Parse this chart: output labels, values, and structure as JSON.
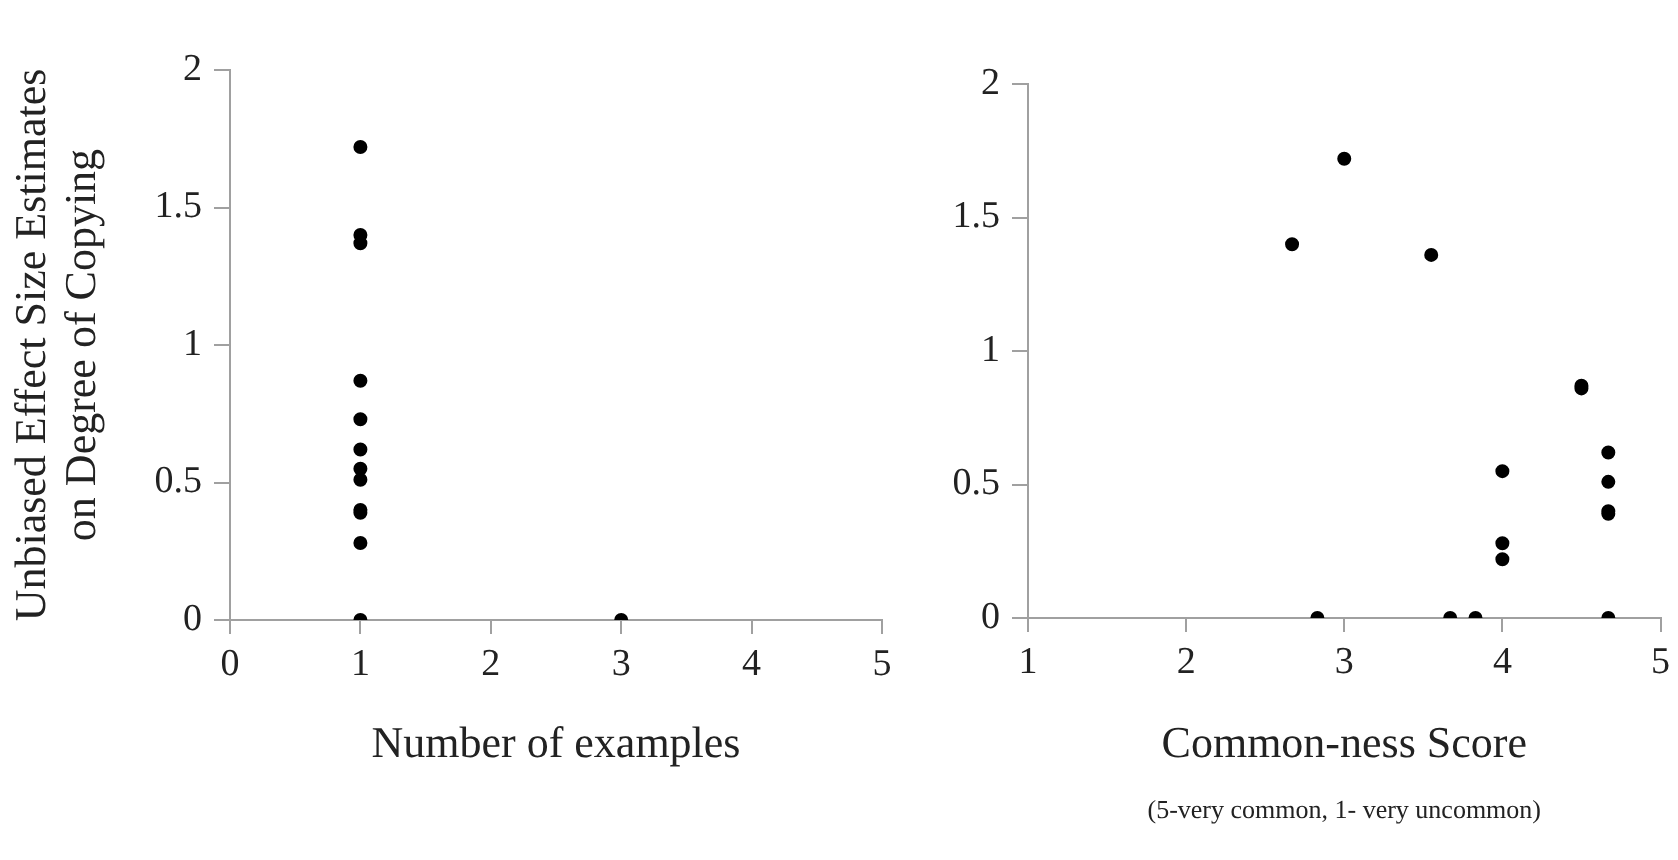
{
  "chart_data": [
    {
      "type": "scatter",
      "xlabel": "Number of examples",
      "ylabel": "Unbiased Effect Size Estimates\non Degree of Copying",
      "color": "#000000",
      "marker": "circle",
      "x": [
        1,
        1,
        1,
        1,
        1,
        1,
        1,
        1,
        1,
        1,
        1,
        1,
        3
      ],
      "values": [
        1.72,
        1.4,
        1.37,
        0.87,
        0.73,
        0.62,
        0.55,
        0.51,
        0.4,
        0.39,
        0.28,
        0,
        0
      ],
      "xlim": [
        0,
        5
      ],
      "xticks": [
        0,
        1,
        2,
        3,
        4,
        5
      ],
      "ylim": [
        0,
        2
      ],
      "yticks": [
        0,
        0.5,
        1,
        1.5,
        2
      ]
    },
    {
      "type": "scatter",
      "xlabel": "Common-ness Score",
      "annotations": [
        "(5-very common, 1- very uncommon)"
      ],
      "color": "#000000",
      "marker": "circle",
      "x": [
        2.67,
        3,
        3.55,
        4.5,
        4.5,
        4.67,
        4.67,
        4.67,
        4.67,
        4,
        4,
        4,
        2.83,
        3.67,
        3.83,
        4.67
      ],
      "values": [
        1.4,
        1.72,
        1.36,
        0.87,
        0.86,
        0.62,
        0.51,
        0.4,
        0.39,
        0.55,
        0.28,
        0.22,
        0,
        0,
        0,
        0
      ],
      "xlim": [
        1,
        5
      ],
      "xticks": [
        1,
        2,
        3,
        4,
        5
      ],
      "ylim": [
        0,
        2
      ],
      "yticks": [
        0,
        0.5,
        1,
        1.5,
        2
      ]
    }
  ]
}
